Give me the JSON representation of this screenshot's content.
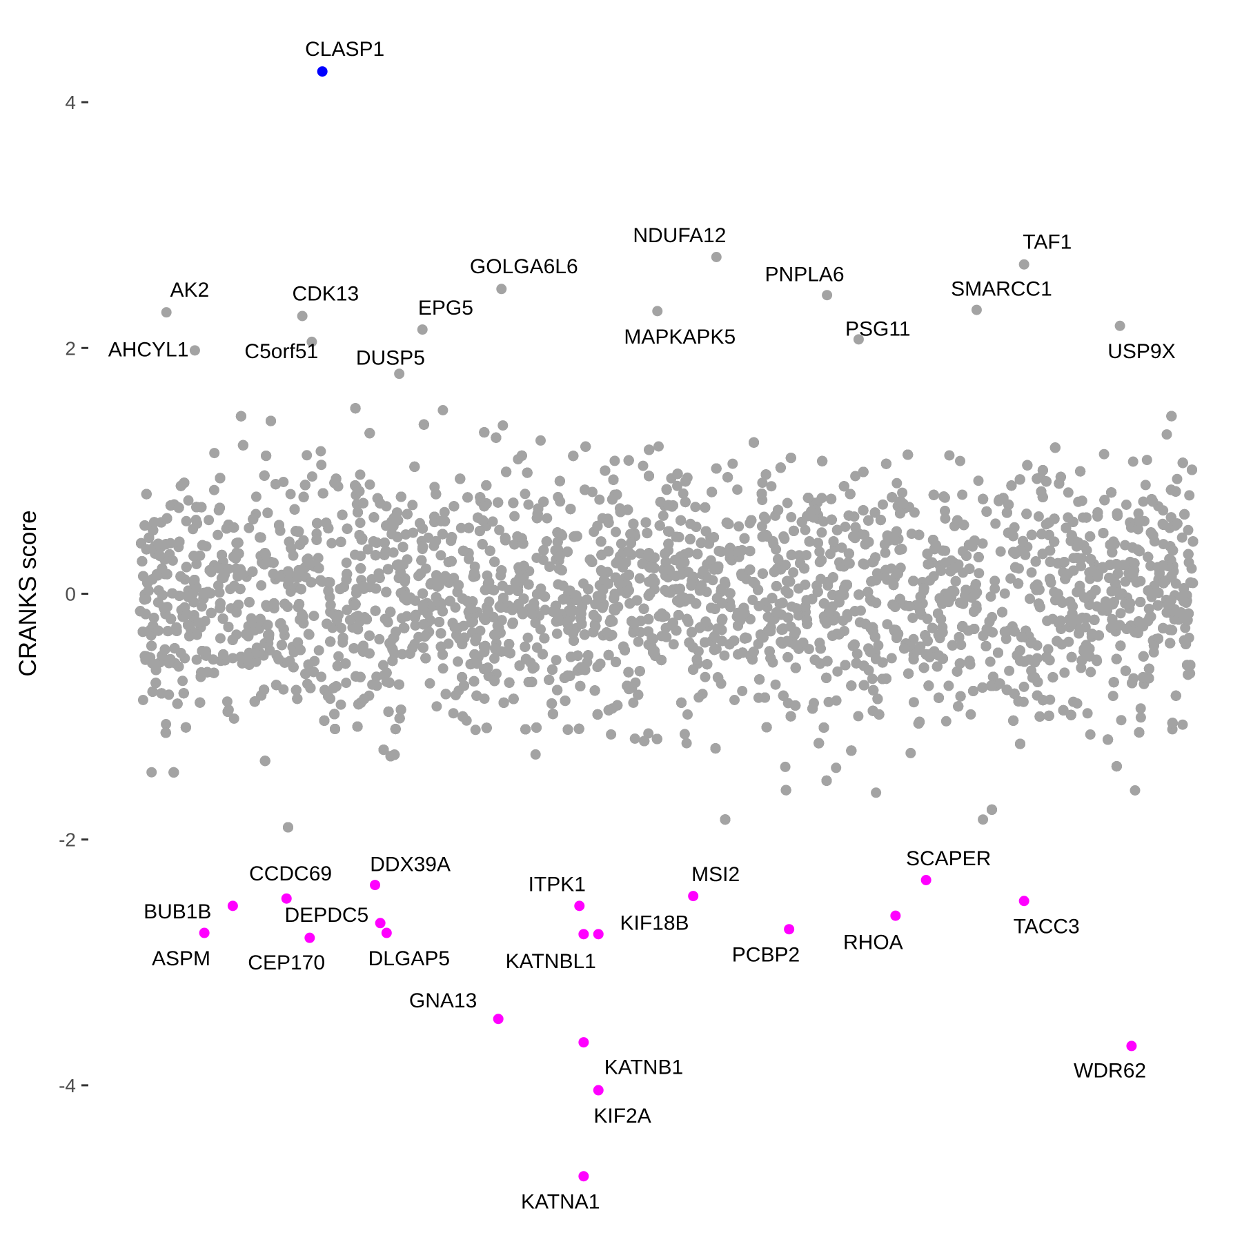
{
  "chart_data": {
    "type": "scatter",
    "title": "",
    "xlabel": "",
    "ylabel": "CRANKS score",
    "ylim": [
      -5,
      4.5
    ],
    "xlim": [
      0,
      100
    ],
    "x_axis_visible": false,
    "y_ticks": [
      4,
      2,
      0,
      -2,
      -4
    ],
    "y_tick_labels": [
      "4",
      "2",
      "0",
      "-2",
      "-4"
    ],
    "grid": false,
    "legend": "none",
    "colors": {
      "background": "#a3a3a3",
      "positive_highlight": "#0000ff",
      "negative_highlight": "#ff00ff"
    },
    "background_series": {
      "description_color": "#a3a3a3",
      "y_range_typical": [
        -1.6,
        1.6
      ]
    },
    "labeled_points": [
      {
        "label": "CLASP1",
        "x": 17.3,
        "y": 4.25,
        "group": "positive_highlight"
      },
      {
        "label": "AK2",
        "x": 2.5,
        "y": 2.29,
        "group": "background"
      },
      {
        "label": "AHCYL1",
        "x": 5.2,
        "y": 1.98,
        "group": "background"
      },
      {
        "label": "CDK13",
        "x": 15.4,
        "y": 2.26,
        "group": "background"
      },
      {
        "label": "C5orf51",
        "x": 16.3,
        "y": 2.05,
        "group": "background"
      },
      {
        "label": "EPG5",
        "x": 26.8,
        "y": 2.15,
        "group": "background"
      },
      {
        "label": "DUSP5",
        "x": 24.6,
        "y": 1.79,
        "group": "background"
      },
      {
        "label": "GOLGA6L6",
        "x": 34.3,
        "y": 2.48,
        "group": "background"
      },
      {
        "label": "NDUFA12",
        "x": 54.7,
        "y": 2.74,
        "group": "background"
      },
      {
        "label": "MAPKAPK5",
        "x": 49.1,
        "y": 2.3,
        "group": "background"
      },
      {
        "label": "PNPLA6",
        "x": 65.2,
        "y": 2.43,
        "group": "background"
      },
      {
        "label": "PSG11",
        "x": 68.2,
        "y": 2.07,
        "group": "background"
      },
      {
        "label": "TAF1",
        "x": 83.9,
        "y": 2.68,
        "group": "background"
      },
      {
        "label": "SMARCC1",
        "x": 79.4,
        "y": 2.31,
        "group": "background"
      },
      {
        "label": "USP9X",
        "x": 93.0,
        "y": 2.18,
        "group": "background"
      },
      {
        "label": "BUB1B",
        "x": 8.8,
        "y": -2.54,
        "group": "negative_highlight"
      },
      {
        "label": "ASPM",
        "x": 6.1,
        "y": -2.76,
        "group": "negative_highlight"
      },
      {
        "label": "CCDC69",
        "x": 13.9,
        "y": -2.48,
        "group": "negative_highlight"
      },
      {
        "label": "CEP170",
        "x": 16.1,
        "y": -2.8,
        "group": "negative_highlight"
      },
      {
        "label": "DDX39A",
        "x": 22.3,
        "y": -2.37,
        "group": "negative_highlight"
      },
      {
        "label": "DEPDC5",
        "x": 22.8,
        "y": -2.68,
        "group": "negative_highlight"
      },
      {
        "label": "DLGAP5",
        "x": 23.4,
        "y": -2.76,
        "group": "negative_highlight"
      },
      {
        "label": "GNA13",
        "x": 34.0,
        "y": -3.46,
        "group": "negative_highlight"
      },
      {
        "label": "ITPK1",
        "x": 41.7,
        "y": -2.54,
        "group": "negative_highlight"
      },
      {
        "label": "KATNBL1",
        "x": 42.1,
        "y": -2.77,
        "group": "negative_highlight"
      },
      {
        "label": "KIF18B",
        "x": 43.5,
        "y": -2.77,
        "group": "negative_highlight"
      },
      {
        "label": "KATNB1",
        "x": 42.1,
        "y": -3.65,
        "group": "negative_highlight"
      },
      {
        "label": "KIF2A",
        "x": 43.5,
        "y": -4.04,
        "group": "negative_highlight"
      },
      {
        "label": "KATNA1",
        "x": 42.1,
        "y": -4.74,
        "group": "negative_highlight"
      },
      {
        "label": "MSI2",
        "x": 52.5,
        "y": -2.46,
        "group": "negative_highlight"
      },
      {
        "label": "PCBP2",
        "x": 61.6,
        "y": -2.73,
        "group": "negative_highlight"
      },
      {
        "label": "RHOA",
        "x": 71.7,
        "y": -2.62,
        "group": "negative_highlight"
      },
      {
        "label": "SCAPER",
        "x": 74.6,
        "y": -2.33,
        "group": "negative_highlight"
      },
      {
        "label": "TACC3",
        "x": 83.9,
        "y": -2.5,
        "group": "negative_highlight"
      },
      {
        "label": "WDR62",
        "x": 94.1,
        "y": -3.68,
        "group": "negative_highlight"
      }
    ]
  }
}
